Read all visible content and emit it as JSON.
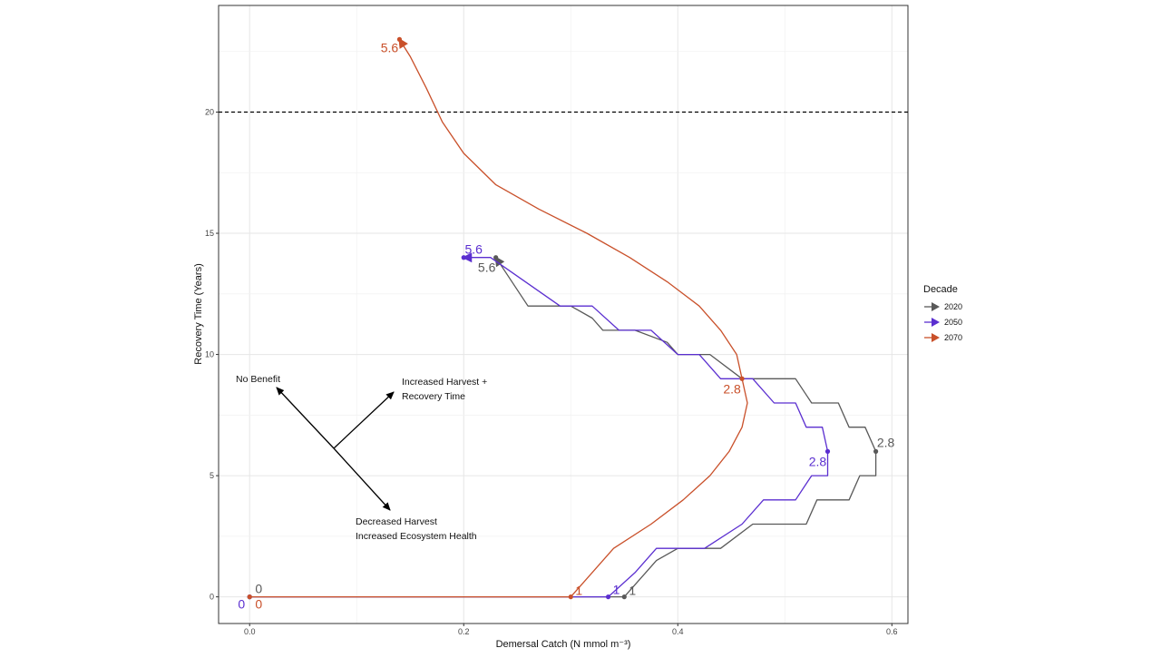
{
  "chart_data": {
    "type": "line",
    "xlabel": "Demersal Catch (N mmol m⁻³)",
    "ylabel": "Recovery Time (Years)",
    "xlim": [
      -0.029,
      0.615
    ],
    "ylim": [
      -1.1,
      24.4
    ],
    "x_ticks": [
      0.0,
      0.2,
      0.4,
      0.6
    ],
    "x_tick_labels": [
      "0.0",
      "0.2",
      "0.4",
      "0.6"
    ],
    "y_ticks": [
      0,
      5,
      10,
      15,
      20
    ],
    "y_tick_labels": [
      "0",
      "5",
      "10",
      "15",
      "20"
    ],
    "grid": true,
    "reference_line": {
      "y": 20,
      "style": "dashed"
    },
    "legend": {
      "title": "Decade",
      "position": "right"
    },
    "series": [
      {
        "name": "2020",
        "color": "#595959",
        "points": [
          [
            0.0,
            0
          ],
          [
            0.35,
            0
          ],
          [
            0.37,
            1
          ],
          [
            0.38,
            1.5
          ],
          [
            0.4,
            2
          ],
          [
            0.44,
            2
          ],
          [
            0.47,
            3
          ],
          [
            0.52,
            3
          ],
          [
            0.53,
            4
          ],
          [
            0.56,
            4
          ],
          [
            0.57,
            5
          ],
          [
            0.585,
            5
          ],
          [
            0.585,
            6
          ],
          [
            0.575,
            7
          ],
          [
            0.56,
            7
          ],
          [
            0.55,
            8
          ],
          [
            0.525,
            8
          ],
          [
            0.51,
            9
          ],
          [
            0.485,
            9
          ],
          [
            0.46,
            9
          ],
          [
            0.43,
            10
          ],
          [
            0.4,
            10
          ],
          [
            0.39,
            10.5
          ],
          [
            0.36,
            11
          ],
          [
            0.33,
            11
          ],
          [
            0.32,
            11.5
          ],
          [
            0.3,
            12
          ],
          [
            0.26,
            12
          ],
          [
            0.23,
            14
          ]
        ],
        "labeled_points": [
          {
            "x": 0.0,
            "y": 0,
            "label": "0"
          },
          {
            "x": 0.35,
            "y": 0,
            "label": "1"
          },
          {
            "x": 0.585,
            "y": 6,
            "label": "2.8"
          },
          {
            "x": 0.23,
            "y": 14,
            "label": "5.6"
          }
        ]
      },
      {
        "name": "2050",
        "color": "#5b2fd0",
        "points": [
          [
            0.0,
            0
          ],
          [
            0.335,
            0
          ],
          [
            0.36,
            1
          ],
          [
            0.38,
            2
          ],
          [
            0.425,
            2
          ],
          [
            0.46,
            3
          ],
          [
            0.48,
            4
          ],
          [
            0.51,
            4
          ],
          [
            0.525,
            5
          ],
          [
            0.54,
            5
          ],
          [
            0.54,
            6
          ],
          [
            0.535,
            7
          ],
          [
            0.52,
            7
          ],
          [
            0.51,
            8
          ],
          [
            0.49,
            8
          ],
          [
            0.47,
            9
          ],
          [
            0.44,
            9
          ],
          [
            0.42,
            10
          ],
          [
            0.4,
            10
          ],
          [
            0.375,
            11
          ],
          [
            0.345,
            11
          ],
          [
            0.32,
            12
          ],
          [
            0.29,
            12
          ],
          [
            0.225,
            14
          ],
          [
            0.2,
            14
          ]
        ],
        "labeled_points": [
          {
            "x": 0.0,
            "y": 0,
            "label": "0"
          },
          {
            "x": 0.335,
            "y": 0,
            "label": "1"
          },
          {
            "x": 0.54,
            "y": 6,
            "label": "2.8"
          },
          {
            "x": 0.2,
            "y": 14,
            "label": "5.6"
          }
        ]
      },
      {
        "name": "2070",
        "color": "#c9502a",
        "points": [
          [
            0.0,
            0
          ],
          [
            0.3,
            0
          ],
          [
            0.34,
            2
          ],
          [
            0.375,
            3
          ],
          [
            0.405,
            4
          ],
          [
            0.43,
            5
          ],
          [
            0.448,
            6
          ],
          [
            0.46,
            7
          ],
          [
            0.465,
            8
          ],
          [
            0.46,
            9
          ],
          [
            0.455,
            10
          ],
          [
            0.44,
            11
          ],
          [
            0.42,
            12
          ],
          [
            0.39,
            13
          ],
          [
            0.355,
            14
          ],
          [
            0.315,
            15
          ],
          [
            0.27,
            16
          ],
          [
            0.23,
            17
          ],
          [
            0.2,
            18.3
          ],
          [
            0.18,
            19.6
          ],
          [
            0.165,
            21
          ],
          [
            0.15,
            22.3
          ],
          [
            0.14,
            23
          ]
        ],
        "labeled_points": [
          {
            "x": 0.0,
            "y": 0,
            "label": "0"
          },
          {
            "x": 0.3,
            "y": 0,
            "label": "1"
          },
          {
            "x": 0.46,
            "y": 9,
            "label": "2.8"
          },
          {
            "x": 0.14,
            "y": 23,
            "label": "5.6"
          }
        ]
      }
    ],
    "annotations": {
      "no_benefit": "No Benefit",
      "increased_line1": "Increased Harvest +",
      "increased_line2": "Recovery Time",
      "decreased_line1": "Decreased Harvest",
      "decreased_line2": "Increased Ecosystem Health"
    }
  }
}
